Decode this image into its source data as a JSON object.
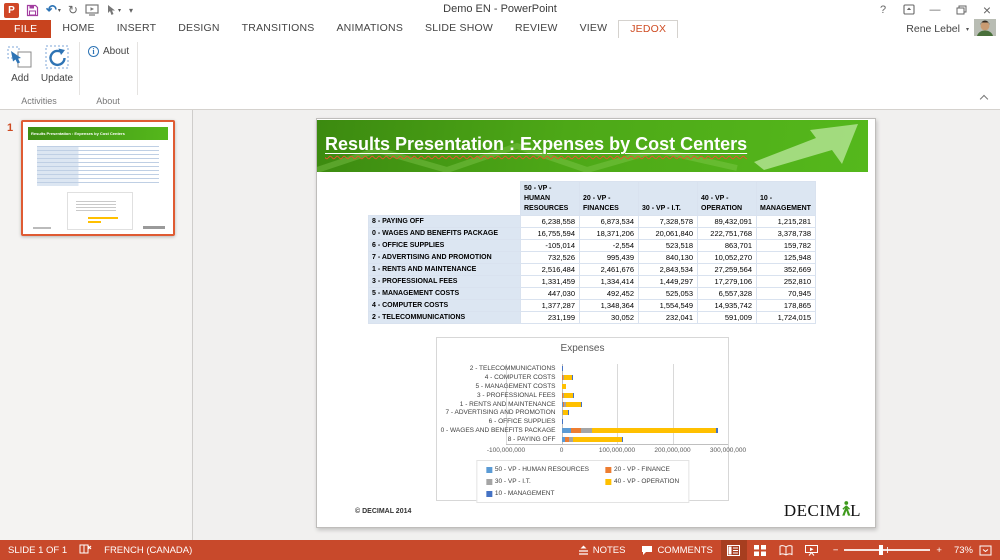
{
  "titlebar": {
    "title": "Demo EN - PowerPoint",
    "help_label": "?",
    "user_name": "Rene Lebel"
  },
  "icons": {
    "minimize": "—",
    "close": "×",
    "dropdown": "▾",
    "undo": "↶",
    "redo": "↻",
    "zoom_out": "−",
    "zoom_in": "+"
  },
  "tabs": {
    "file_label": "FILE",
    "items": [
      "HOME",
      "INSERT",
      "DESIGN",
      "TRANSITIONS",
      "ANIMATIONS",
      "SLIDE SHOW",
      "REVIEW",
      "VIEW",
      "JEDOX"
    ],
    "active": "JEDOX"
  },
  "ribbon": {
    "add_label": "Add",
    "update_label": "Update",
    "about_label": "About",
    "activities_group_label": "Activities",
    "about_group_label": "About"
  },
  "thumbnail_panel": {
    "slide_number": "1"
  },
  "slide": {
    "title": "Results Presentation : Expenses by Cost Centers",
    "footer": "© DECIMAL 2014",
    "logo_text_1": "DECIM",
    "logo_text_2": "L",
    "table": {
      "col_headers": [
        "50 - VP - HUMAN RESOURCES",
        "20 - VP - FINANCES",
        "30 - VP - I.T.",
        "40 - VP - OPERATION",
        "10 - MANAGEMENT"
      ],
      "rows": [
        {
          "label": "8 - PAYING OFF",
          "values": [
            "6,238,558",
            "6,873,534",
            "7,328,578",
            "89,432,091",
            "1,215,281"
          ]
        },
        {
          "label": "0 - WAGES AND BENEFITS PACKAGE",
          "values": [
            "16,755,594",
            "18,371,206",
            "20,061,840",
            "222,751,768",
            "3,378,738"
          ]
        },
        {
          "label": "6 - OFFICE SUPPLIES",
          "values": [
            "-105,014",
            "-2,554",
            "523,518",
            "863,701",
            "159,782"
          ]
        },
        {
          "label": "7 - ADVERTISING AND PROMOTION",
          "values": [
            "732,526",
            "995,439",
            "840,130",
            "10,052,270",
            "125,948"
          ]
        },
        {
          "label": "1 - RENTS AND MAINTENANCE",
          "values": [
            "2,516,484",
            "2,461,676",
            "2,843,534",
            "27,259,564",
            "352,669"
          ]
        },
        {
          "label": "3 - PROFESSIONAL FEES",
          "values": [
            "1,331,459",
            "1,334,414",
            "1,449,297",
            "17,279,106",
            "252,810"
          ]
        },
        {
          "label": "5 - MANAGEMENT COSTS",
          "values": [
            "447,030",
            "492,452",
            "525,053",
            "6,557,328",
            "70,945"
          ]
        },
        {
          "label": "4 - COMPUTER COSTS",
          "values": [
            "1,377,287",
            "1,348,364",
            "1,554,549",
            "14,935,742",
            "178,865"
          ]
        },
        {
          "label": "2 - TELECOMMUNICATIONS",
          "values": [
            "231,199",
            "30,052",
            "232,041",
            "591,009",
            "1,724,015"
          ]
        }
      ]
    }
  },
  "chart_data": {
    "type": "bar",
    "orientation": "horizontal",
    "stacked": true,
    "title": "Expenses",
    "categories": [
      "2 - TELECOMMUNICATIONS",
      "4 - COMPUTER COSTS",
      "5 - MANAGEMENT COSTS",
      "3 - PROFESSIONAL FEES",
      "1 - RENTS AND MAINTENANCE",
      "7 - ADVERTISING AND PROMOTION",
      "6 - OFFICE SUPPLIES",
      "0 - WAGES AND BENEFITS PACKAGE",
      "8 - PAYING OFF"
    ],
    "series": [
      {
        "name": "50 - VP - HUMAN RESOURCES",
        "color": "#5B9BD5",
        "values": [
          231199,
          1377287,
          447030,
          1331459,
          2516484,
          732526,
          -105014,
          16755594,
          6238558
        ]
      },
      {
        "name": "20 - VP - FINANCE",
        "color": "#ED7D31",
        "values": [
          30052,
          1348364,
          492452,
          1334414,
          2461676,
          995439,
          -2554,
          18371206,
          6873534
        ]
      },
      {
        "name": "30 - VP - I.T.",
        "color": "#A5A5A5",
        "values": [
          232041,
          1554549,
          525053,
          1449297,
          2843534,
          840130,
          523518,
          20061840,
          7328578
        ]
      },
      {
        "name": "40 - VP - OPERATION",
        "color": "#FFC000",
        "values": [
          591009,
          14935742,
          6557328,
          17279106,
          27259564,
          10052270,
          863701,
          222751768,
          89432091
        ]
      },
      {
        "name": "10 - MANAGEMENT",
        "color": "#4472C4",
        "values": [
          1724015,
          178865,
          70945,
          252810,
          352669,
          125948,
          159782,
          3378738,
          1215281
        ]
      }
    ],
    "xlim": [
      -100000000,
      300000000
    ],
    "x_tick_values": [
      -100000000,
      0,
      100000000,
      200000000,
      300000000
    ],
    "x_tick_labels": [
      "-100,000,000",
      "0",
      "100,000,000",
      "200,000,000",
      "300,000,000"
    ],
    "grid": true,
    "legend_position": "bottom"
  },
  "statusbar": {
    "slide_indicator": "SLIDE 1 OF 1",
    "language": "FRENCH (CANADA)",
    "notes_label": "NOTES",
    "comments_label": "COMMENTS",
    "zoom_level": "73%"
  },
  "colors": {
    "accent_orange": "#C8492B",
    "banner_green_dark": "#3C8A10",
    "banner_green_light": "#55B81C",
    "table_header_bg": "#DCE6F2"
  }
}
